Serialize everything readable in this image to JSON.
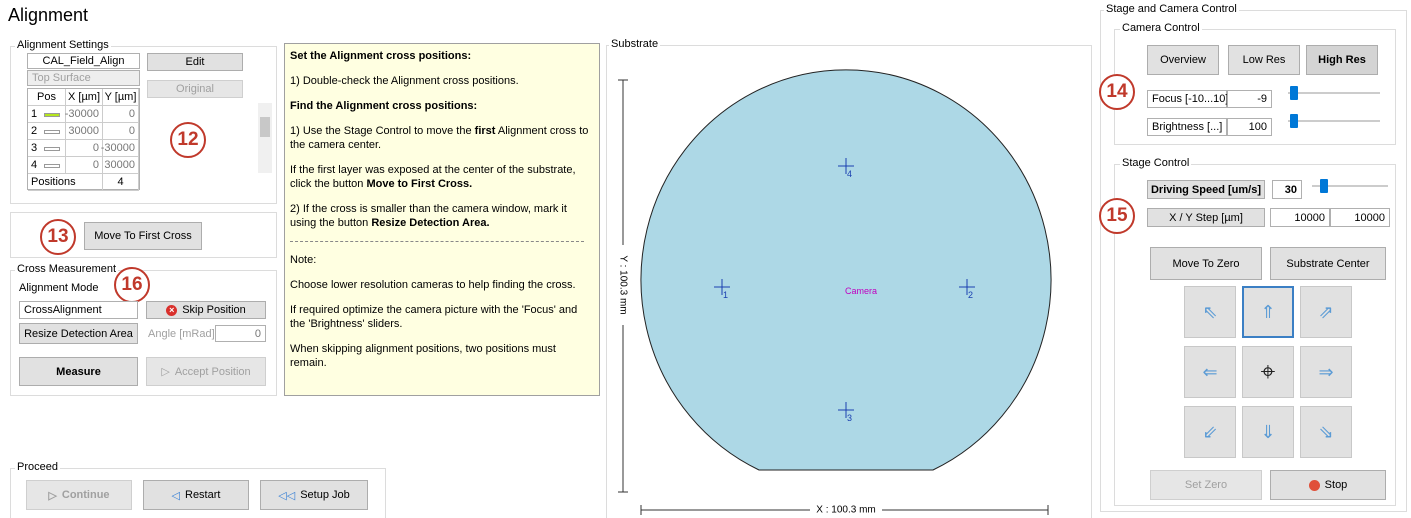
{
  "title": "Alignment",
  "alignment_settings": {
    "label": "Alignment Settings",
    "name": "CAL_Field_Align",
    "surface": "Top Surface",
    "edit": "Edit",
    "original": "Original",
    "badge": 12,
    "table": {
      "header": [
        "Pos",
        "X [µm]",
        "Y [µm]"
      ],
      "rows": [
        [
          1,
          -30000,
          0
        ],
        [
          2,
          30000,
          0
        ],
        [
          3,
          0,
          -30000
        ],
        [
          4,
          0,
          30000
        ]
      ],
      "footer": [
        "Positions",
        4
      ]
    }
  },
  "first_cross": {
    "badge": 13,
    "button": "Move To First Cross"
  },
  "cross_measurement": {
    "label": "Cross Measurement",
    "mode_label": "Alignment Mode",
    "badge": 16,
    "mode": "CrossAlignment",
    "skip": "Skip Position",
    "resize": "Resize Detection Area",
    "angle_label": "Angle [mRad]",
    "angle": 0,
    "measure": "Measure",
    "accept": "Accept Position"
  },
  "proceed": {
    "label": "Proceed",
    "continue": "Continue",
    "restart": "Restart",
    "setup_job": "Setup Job"
  },
  "instructions": [
    [
      {
        "text": "Set the Alignment cross positions:",
        "bold": true
      }
    ],
    [
      {
        "text": "1) Double-check the Alignment cross positions."
      }
    ],
    [
      {
        "text": "Find the Alignment cross positions:",
        "bold": true
      }
    ],
    [
      {
        "text": "1) Use the Stage Control to move the "
      },
      {
        "text": "first",
        "bold": true
      },
      {
        "text": " Alignment cross to the camera center."
      }
    ],
    [
      {
        "text": "If the first layer was exposed at the center of the substrate, click the button "
      },
      {
        "text": "Move to First Cross.",
        "bold": true
      }
    ],
    [
      {
        "text": "2) If the cross is smaller than the  camera window, mark it using the button "
      },
      {
        "text": "Resize Detection Area.",
        "bold": true
      }
    ],
    [
      {
        "text": "Note:"
      }
    ],
    [
      {
        "text": "Choose lower resolution cameras to help finding the cross."
      }
    ],
    [
      {
        "text": "If required optimize the camera picture with the 'Focus' and the 'Brightness' sliders."
      }
    ],
    [
      {
        "text": "When skipping alignment positions, two positions must remain."
      }
    ]
  ],
  "substrate": {
    "label": "Substrate",
    "y_axis": "Y : 100.3 mm",
    "x_axis": "X : 100.3 mm",
    "crosses": [
      1,
      2,
      3,
      4
    ],
    "camera": "Camera"
  },
  "stage_camera": {
    "label": "Stage and Camera Control",
    "camera_control": {
      "label": "Camera Control",
      "buttons": [
        "Overview",
        "Low Res",
        "High Res"
      ],
      "badge": 14,
      "focus_label": "Focus [-10...10]",
      "focus": -9,
      "brightness_label": "Brightness [...]",
      "brightness": 100
    },
    "stage_control": {
      "label": "Stage Control",
      "speed_label": "Driving Speed [um/s]",
      "speed": 30,
      "badge": 15,
      "step_label": "X / Y Step [µm]",
      "step_x": 10000,
      "step_y": 10000,
      "move_zero": "Move To Zero",
      "substrate_center": "Substrate Center",
      "set_zero": "Set Zero",
      "stop": "Stop"
    }
  }
}
